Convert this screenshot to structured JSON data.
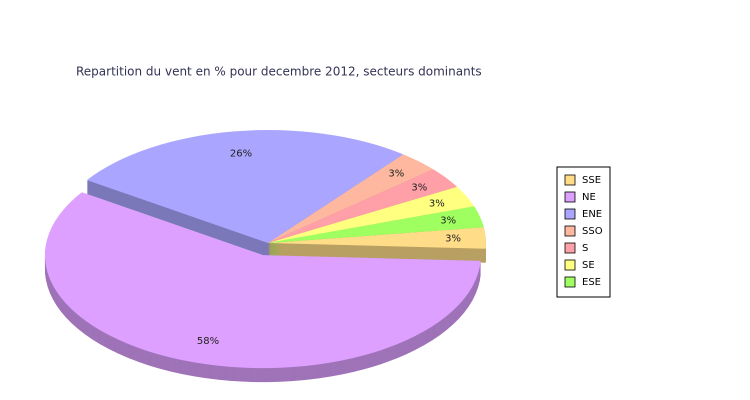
{
  "chart_data": {
    "type": "pie",
    "title": "Repartition du vent en % pour decembre 2012, secteurs dominants",
    "categories": [
      "SSE",
      "NE",
      "ENE",
      "SSO",
      "S",
      "SE",
      "ESE"
    ],
    "values": [
      3,
      58,
      26,
      3,
      3,
      3,
      3
    ],
    "value_labels": [
      "3%",
      "58%",
      "26%",
      "3%",
      "3%",
      "3%",
      "3%"
    ],
    "colors": [
      "#ffdd88",
      "#dda0ff",
      "#aaa6ff",
      "#ffb8a0",
      "#ff9fa8",
      "#ffff80",
      "#a0ff60"
    ],
    "exploded": "NE"
  }
}
